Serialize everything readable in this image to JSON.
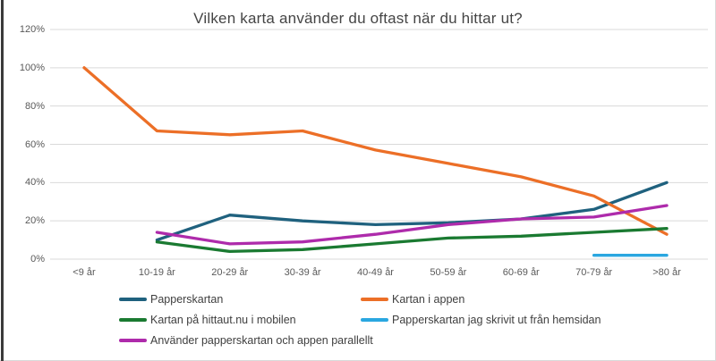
{
  "chart_data": {
    "type": "line",
    "title": "Vilken karta använder du oftast när du hittar ut?",
    "categories": [
      "<9 år",
      "10-19 år",
      "20-29 år",
      "30-39 år",
      "40-49 år",
      "50-59 år",
      "60-69 år",
      "70-79 år",
      ">80 år"
    ],
    "series": [
      {
        "name": "Papperskartan",
        "color": "#1F617E",
        "values": [
          null,
          10,
          23,
          20,
          18,
          19,
          21,
          26,
          40
        ]
      },
      {
        "name": "Kartan i appen",
        "color": "#EC6F27",
        "values": [
          100,
          67,
          65,
          67,
          57,
          50,
          43,
          33,
          13
        ]
      },
      {
        "name": "Kartan på hittaut.nu i mobilen",
        "color": "#1A7A31",
        "values": [
          null,
          9,
          4,
          5,
          8,
          11,
          12,
          14,
          16
        ]
      },
      {
        "name": "Papperskartan jag skrivit ut från hemsidan",
        "color": "#2AA7E0",
        "values": [
          null,
          null,
          null,
          null,
          null,
          null,
          null,
          2,
          2
        ]
      },
      {
        "name": "Använder papperskartan och appen parallellt",
        "color": "#AE2BAB",
        "values": [
          null,
          14,
          8,
          9,
          13,
          18,
          21,
          22,
          28
        ]
      }
    ],
    "ylim": [
      0,
      120
    ],
    "ytick_step": 20,
    "ytick_labels": [
      "0%",
      "20%",
      "40%",
      "60%",
      "80%",
      "100%",
      "120%"
    ],
    "grid": true,
    "gridline_color": "#d9d9d9",
    "axis_text_color": "#595959",
    "legend_position": "bottom-two-columns"
  }
}
